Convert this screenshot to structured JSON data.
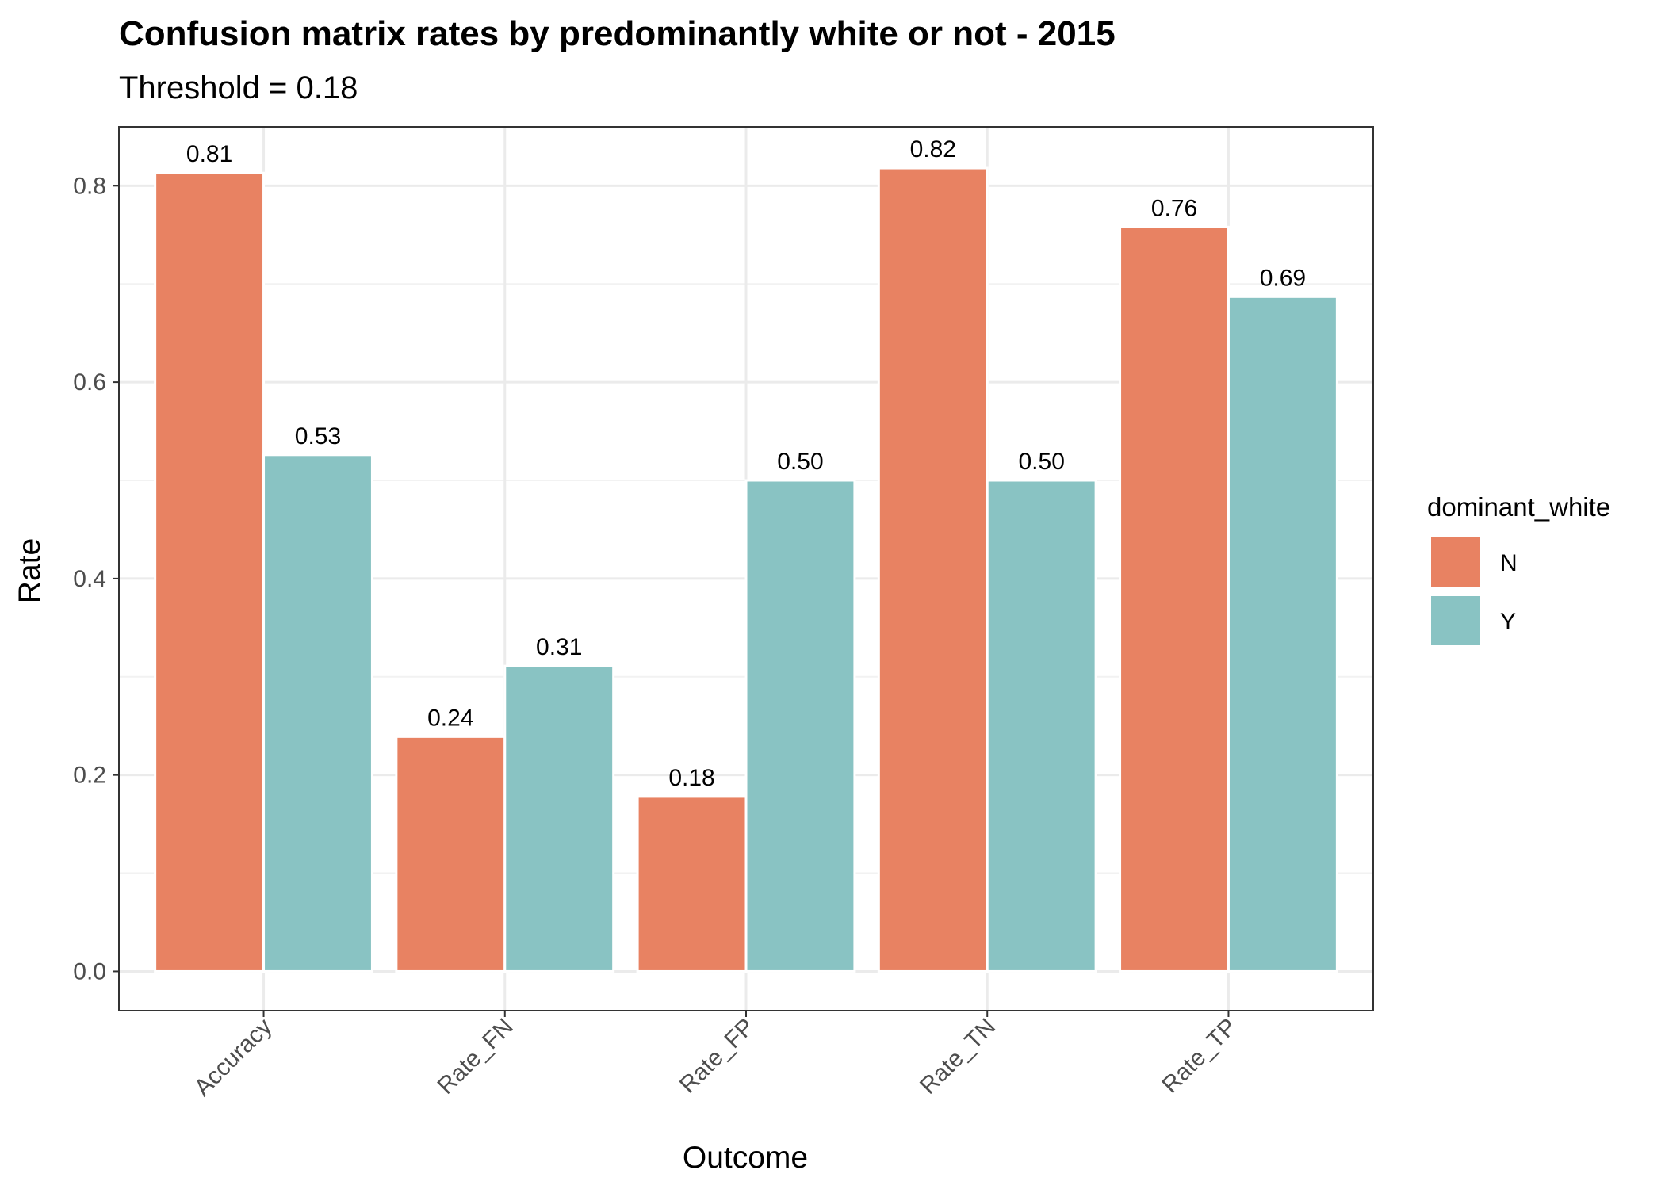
{
  "chart_data": {
    "type": "bar",
    "title": "Confusion matrix rates by predominantly white or not - 2015",
    "subtitle": "Threshold = 0.18",
    "xlabel": "Outcome",
    "ylabel": "Rate",
    "categories": [
      "Accuracy",
      "Rate_FN",
      "Rate_FP",
      "Rate_TN",
      "Rate_TP"
    ],
    "series": [
      {
        "name": "N",
        "color": "#e88262",
        "values": [
          0.813,
          0.239,
          0.178,
          0.818,
          0.758
        ],
        "labels": [
          "0.81",
          "0.24",
          "0.18",
          "0.82",
          "0.76"
        ]
      },
      {
        "name": "Y",
        "color": "#89c3c3",
        "values": [
          0.526,
          0.311,
          0.5,
          0.5,
          0.687
        ],
        "labels": [
          "0.53",
          "0.31",
          "0.50",
          "0.50",
          "0.69"
        ]
      }
    ],
    "ylim": [
      -0.04,
      0.86
    ],
    "yticks": [
      0.0,
      0.2,
      0.4,
      0.6,
      0.8
    ],
    "ytick_labels": [
      "0.0",
      "0.2",
      "0.4",
      "0.6",
      "0.8"
    ],
    "grid": true,
    "legend": {
      "title": "dominant_white",
      "placement": "right",
      "entries": [
        "N",
        "Y"
      ]
    },
    "xtick_rotation_deg": 45,
    "theme_colors": {
      "panel_border": "#333333",
      "grid_major": "#ebebeb",
      "grid_minor": "#f2f2f2",
      "tick_text": "#4d4d4d"
    }
  }
}
